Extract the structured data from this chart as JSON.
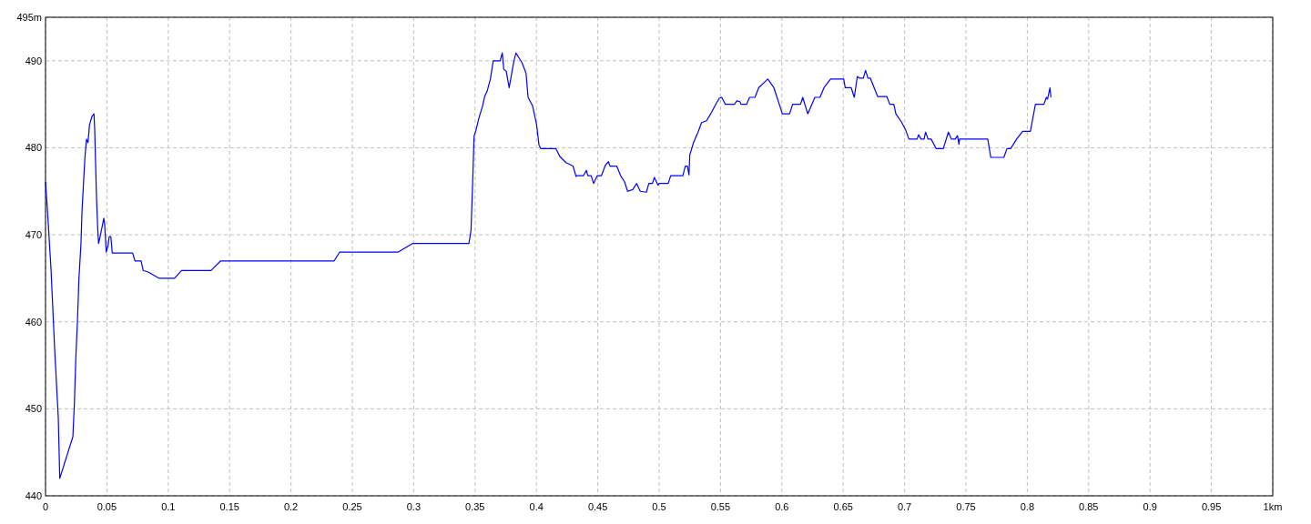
{
  "chart_data": {
    "type": "line",
    "grid": true,
    "line_style": "solid",
    "xlim": [
      0,
      1
    ],
    "ylim": [
      440,
      495
    ],
    "xticks": [
      0,
      0.05,
      0.1,
      0.15,
      0.2,
      0.25,
      0.3,
      0.35,
      0.4,
      0.45,
      0.5,
      0.55,
      0.6,
      0.65,
      0.7,
      0.75,
      0.8,
      0.85,
      0.9,
      0.95,
      {
        "value": 1,
        "label": "1km"
      }
    ],
    "yticks": [
      440,
      450,
      460,
      470,
      480,
      490,
      {
        "value": 495,
        "label": "495m"
      }
    ],
    "series": [
      {
        "color": "#0000ff",
        "x": [
          0,
          0.0015,
          0.0045,
          0.0074,
          0.0104,
          0.0116,
          0.0223,
          0.0235,
          0.0247,
          0.026,
          0.0272,
          0.0289,
          0.0297,
          0.0309,
          0.0321,
          0.0334,
          0.0346,
          0.0358,
          0.0378,
          0.0395,
          0.0401,
          0.0408,
          0.0415,
          0.0425,
          0.0432,
          0.0445,
          0.0475,
          0.0482,
          0.0495,
          0.051,
          0.0519,
          0.0532,
          0.0544,
          0.071,
          0.0729,
          0.0779,
          0.0796,
          0.084,
          0.0927,
          0.1051,
          0.1108,
          0.1348,
          0.1427,
          0.2352,
          0.2396,
          0.2871,
          0.299,
          0.345,
          0.3467,
          0.3479,
          0.3492,
          0.3507,
          0.3531,
          0.3561,
          0.3578,
          0.3598,
          0.3625,
          0.3648,
          0.3704,
          0.3722,
          0.3734,
          0.3754,
          0.3778,
          0.3813,
          0.3833,
          0.3882,
          0.3915,
          0.3932,
          0.3969,
          0.4001,
          0.4021,
          0.4036,
          0.4159,
          0.4191,
          0.4241,
          0.4298,
          0.4323,
          0.4332,
          0.4384,
          0.4407,
          0.4419,
          0.4446,
          0.4466,
          0.4496,
          0.453,
          0.4562,
          0.4587,
          0.4599,
          0.4654,
          0.4686,
          0.4718,
          0.4743,
          0.4785,
          0.4817,
          0.4846,
          0.4896,
          0.4916,
          0.4946,
          0.4961,
          0.499,
          0.5,
          0.5074,
          0.5094,
          0.5119,
          0.5193,
          0.5213,
          0.523,
          0.5243,
          0.525,
          0.528,
          0.5317,
          0.5346,
          0.5386,
          0.542,
          0.5465,
          0.549,
          0.551,
          0.5539,
          0.5614,
          0.5633,
          0.5658,
          0.5668,
          0.5712,
          0.5737,
          0.5781,
          0.5811,
          0.5885,
          0.5935,
          0.6004,
          0.6063,
          0.6088,
          0.6152,
          0.617,
          0.6211,
          0.6269,
          0.6311,
          0.6343,
          0.6397,
          0.6504,
          0.6516,
          0.6565,
          0.659,
          0.6615,
          0.6632,
          0.6664,
          0.6682,
          0.6701,
          0.6721,
          0.678,
          0.6855,
          0.6879,
          0.6912,
          0.6929,
          0.6973,
          0.701,
          0.7035,
          0.7102,
          0.7114,
          0.7134,
          0.7159,
          0.7171,
          0.7191,
          0.7216,
          0.7258,
          0.7315,
          0.7357,
          0.7381,
          0.7413,
          0.7431,
          0.7443,
          0.7448,
          0.7678,
          0.7702,
          0.7809,
          0.7834,
          0.7864,
          0.7913,
          0.7962,
          0.8025,
          0.8066,
          0.8135,
          0.8155,
          0.8165,
          0.8185,
          0.8192
        ],
        "values": [
          476.1,
          473,
          466,
          457,
          449,
          442,
          446.8,
          450.5,
          455.9,
          460,
          464.9,
          469,
          472.6,
          475.8,
          478.9,
          481,
          480.6,
          482.6,
          483.6,
          483.9,
          482,
          478.2,
          474.5,
          470.8,
          469,
          469.8,
          471.9,
          471.2,
          468,
          468.8,
          469.8,
          469.8,
          467.9,
          467.9,
          467,
          467,
          465.9,
          465.7,
          465,
          465,
          465.9,
          465.9,
          467,
          467,
          468,
          468,
          469,
          469,
          470.5,
          475.4,
          481.3,
          482,
          483.4,
          484.8,
          485.9,
          486.5,
          487.9,
          490,
          490,
          490.9,
          489,
          488.8,
          486.9,
          489.7,
          490.9,
          489.8,
          488.6,
          485.8,
          484.8,
          482.7,
          480.3,
          479.9,
          479.9,
          479,
          478.3,
          477.9,
          476.7,
          476.8,
          476.8,
          477.4,
          476.8,
          476.8,
          475.9,
          476.8,
          476.8,
          478,
          478.4,
          477.9,
          477.9,
          476.8,
          476.1,
          475,
          475.2,
          475.9,
          475,
          474.9,
          475.9,
          475.9,
          476.6,
          475.7,
          475.9,
          475.9,
          476.8,
          476.8,
          476.8,
          477.9,
          477.9,
          476.9,
          479.2,
          480.6,
          481.8,
          482.9,
          483.1,
          483.9,
          485.1,
          485.7,
          485.8,
          485,
          485,
          485.4,
          485.3,
          485,
          485,
          485.8,
          485.8,
          486.9,
          487.9,
          486.9,
          483.9,
          483.9,
          485,
          485,
          485.8,
          483.9,
          485.8,
          485.8,
          486.9,
          487.9,
          487.9,
          486.9,
          486.9,
          485.8,
          488.2,
          488,
          488,
          488.9,
          488,
          488,
          485.9,
          485.9,
          485,
          485,
          483.9,
          483,
          482,
          481,
          481,
          481.5,
          481,
          481,
          481.8,
          481,
          481,
          479.9,
          479.9,
          481.8,
          481,
          481,
          481.4,
          480.4,
          481,
          481,
          478.9,
          478.9,
          479.9,
          479.9,
          481,
          481.9,
          481.9,
          485,
          485,
          485.8,
          485.6,
          486.9,
          485.8
        ]
      }
    ]
  }
}
